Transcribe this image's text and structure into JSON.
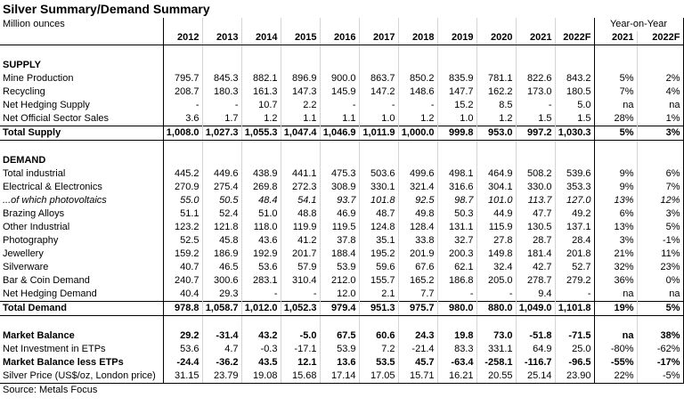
{
  "title": "Silver Summary/Demand Summary",
  "unit_label": "Million ounces",
  "yoy_header": "Year-on-Year",
  "years": [
    "2012",
    "2013",
    "2014",
    "2015",
    "2016",
    "2017",
    "2018",
    "2019",
    "2020",
    "2021",
    "2022F"
  ],
  "yoy_years": [
    "2021",
    "2022F"
  ],
  "supply": {
    "heading": "SUPPLY",
    "rows": [
      {
        "label": "Mine Production",
        "values": [
          "795.7",
          "845.3",
          "882.1",
          "896.9",
          "900.0",
          "863.7",
          "850.2",
          "835.9",
          "781.1",
          "822.6",
          "843.2"
        ],
        "yoy": [
          "5%",
          "2%"
        ]
      },
      {
        "label": "Recycling",
        "values": [
          "208.7",
          "180.3",
          "161.3",
          "147.3",
          "145.9",
          "147.2",
          "148.6",
          "147.7",
          "162.2",
          "173.0",
          "180.5"
        ],
        "yoy": [
          "7%",
          "4%"
        ]
      },
      {
        "label": "Net Hedging Supply",
        "values": [
          "-",
          "-",
          "10.7",
          "2.2",
          "-",
          "-",
          "-",
          "15.2",
          "8.5",
          "-",
          "5.0"
        ],
        "yoy": [
          "na",
          "na"
        ]
      },
      {
        "label": "Net Official Sector Sales",
        "values": [
          "3.6",
          "1.7",
          "1.2",
          "1.1",
          "1.1",
          "1.0",
          "1.2",
          "1.0",
          "1.2",
          "1.5",
          "1.5"
        ],
        "yoy": [
          "28%",
          "1%"
        ]
      }
    ],
    "total": {
      "label": "Total Supply",
      "values": [
        "1,008.0",
        "1,027.3",
        "1,055.3",
        "1,047.4",
        "1,046.9",
        "1,011.9",
        "1,000.0",
        "999.8",
        "953.0",
        "997.2",
        "1,030.3"
      ],
      "yoy": [
        "5%",
        "3%"
      ]
    }
  },
  "demand": {
    "heading": "DEMAND",
    "rows": [
      {
        "label": "Total industrial",
        "values": [
          "445.2",
          "449.6",
          "438.9",
          "441.1",
          "475.3",
          "503.6",
          "499.6",
          "498.1",
          "464.9",
          "508.2",
          "539.6"
        ],
        "yoy": [
          "9%",
          "6%"
        ]
      },
      {
        "label": "Electrical & Electronics",
        "values": [
          "270.9",
          "275.4",
          "269.8",
          "272.3",
          "308.9",
          "330.1",
          "321.4",
          "316.6",
          "304.1",
          "330.0",
          "353.3"
        ],
        "yoy": [
          "9%",
          "7%"
        ]
      },
      {
        "label": "...of which photovoltaics",
        "values": [
          "55.0",
          "50.5",
          "48.4",
          "54.1",
          "93.7",
          "101.8",
          "92.5",
          "98.7",
          "101.0",
          "113.7",
          "127.0"
        ],
        "yoy": [
          "13%",
          "12%"
        ]
      },
      {
        "label": "Brazing Alloys",
        "values": [
          "51.1",
          "52.4",
          "51.0",
          "48.8",
          "46.9",
          "48.7",
          "49.8",
          "50.3",
          "44.9",
          "47.7",
          "49.2"
        ],
        "yoy": [
          "6%",
          "3%"
        ]
      },
      {
        "label": "Other Industrial",
        "values": [
          "123.2",
          "121.8",
          "118.0",
          "119.9",
          "119.5",
          "124.8",
          "128.4",
          "131.1",
          "115.9",
          "130.5",
          "137.1"
        ],
        "yoy": [
          "13%",
          "5%"
        ]
      },
      {
        "label": "Photography",
        "values": [
          "52.5",
          "45.8",
          "43.6",
          "41.2",
          "37.8",
          "35.1",
          "33.8",
          "32.7",
          "27.8",
          "28.7",
          "28.4"
        ],
        "yoy": [
          "3%",
          "-1%"
        ]
      },
      {
        "label": "Jewellery",
        "values": [
          "159.2",
          "186.9",
          "192.9",
          "201.7",
          "188.4",
          "195.2",
          "201.9",
          "200.3",
          "149.8",
          "181.4",
          "201.8"
        ],
        "yoy": [
          "21%",
          "11%"
        ]
      },
      {
        "label": "Silverware",
        "values": [
          "40.7",
          "46.5",
          "53.6",
          "57.9",
          "53.9",
          "59.6",
          "67.6",
          "62.1",
          "32.4",
          "42.7",
          "52.7"
        ],
        "yoy": [
          "32%",
          "23%"
        ]
      },
      {
        "label": "Bar & Coin Demand",
        "values": [
          "240.7",
          "300.6",
          "283.1",
          "310.4",
          "212.0",
          "155.7",
          "165.2",
          "186.8",
          "205.0",
          "278.7",
          "279.2"
        ],
        "yoy": [
          "36%",
          "0%"
        ]
      },
      {
        "label": "Net Hedging Demand",
        "values": [
          "40.4",
          "29.3",
          "-",
          "-",
          "12.0",
          "2.1",
          "7.7",
          "-",
          "-",
          "9.4",
          "-"
        ],
        "yoy": [
          "na",
          "na"
        ]
      }
    ],
    "total": {
      "label": "Total Demand",
      "values": [
        "978.8",
        "1,058.7",
        "1,012.0",
        "1,052.3",
        "979.4",
        "951.3",
        "975.7",
        "980.0",
        "880.0",
        "1,049.0",
        "1,101.8"
      ],
      "yoy": [
        "19%",
        "5%"
      ]
    }
  },
  "balance": {
    "rows": [
      {
        "label": "Market Balance",
        "values": [
          "29.2",
          "-31.4",
          "43.2",
          "-5.0",
          "67.5",
          "60.6",
          "24.3",
          "19.8",
          "73.0",
          "-51.8",
          "-71.5"
        ],
        "yoy": [
          "na",
          "38%"
        ]
      },
      {
        "label": "Net Investment in ETPs",
        "values": [
          "53.6",
          "4.7",
          "-0.3",
          "-17.1",
          "53.9",
          "7.2",
          "-21.4",
          "83.3",
          "331.1",
          "64.9",
          "25.0"
        ],
        "yoy": [
          "-80%",
          "-62%"
        ]
      },
      {
        "label": "Market Balance less ETPs",
        "values": [
          "-24.4",
          "-36.2",
          "43.5",
          "12.1",
          "13.6",
          "53.5",
          "45.7",
          "-63.4",
          "-258.1",
          "-116.7",
          "-96.5"
        ],
        "yoy": [
          "-55%",
          "-17%"
        ]
      },
      {
        "label": "Silver Price (US$/oz, London price)",
        "values": [
          "31.15",
          "23.79",
          "19.08",
          "15.68",
          "17.14",
          "17.05",
          "15.71",
          "16.21",
          "20.55",
          "25.14",
          "23.90"
        ],
        "yoy": [
          "22%",
          "-5%"
        ]
      }
    ]
  },
  "source": "Source: Metals Focus"
}
